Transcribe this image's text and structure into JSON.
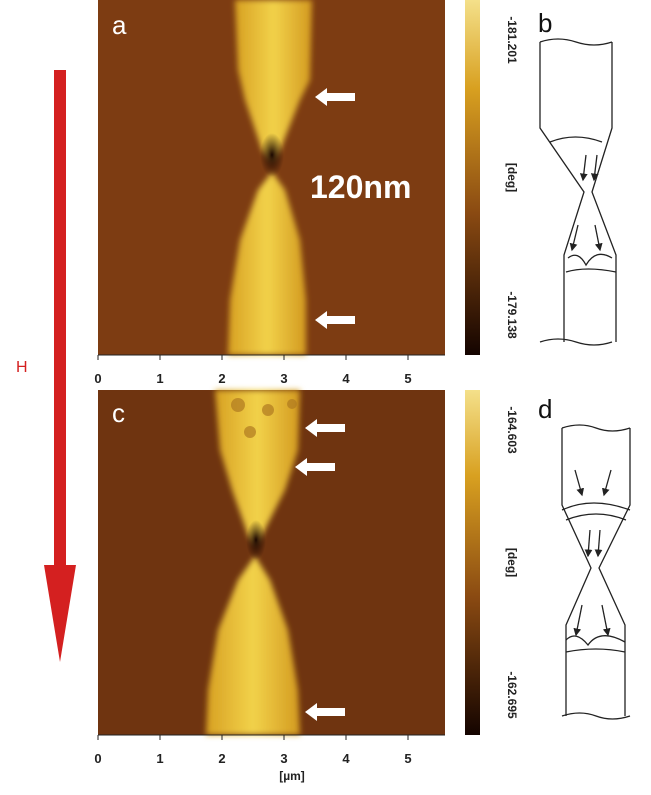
{
  "field_label": "H",
  "x_axis_label": "[µm]",
  "panels": [
    {
      "label": "a",
      "scale_label": "120nm",
      "colorbar": {
        "max": "-181.201",
        "unit": "[deg]",
        "min": "-179.138"
      },
      "x_ticks": [
        0,
        1,
        2,
        3,
        4,
        5
      ]
    },
    {
      "label": "b"
    },
    {
      "label": "c",
      "colorbar": {
        "max": "-164.603",
        "unit": "[deg]",
        "min": "-162.695"
      },
      "x_ticks": [
        0,
        1,
        2,
        3,
        4,
        5
      ]
    },
    {
      "label": "d"
    }
  ]
}
